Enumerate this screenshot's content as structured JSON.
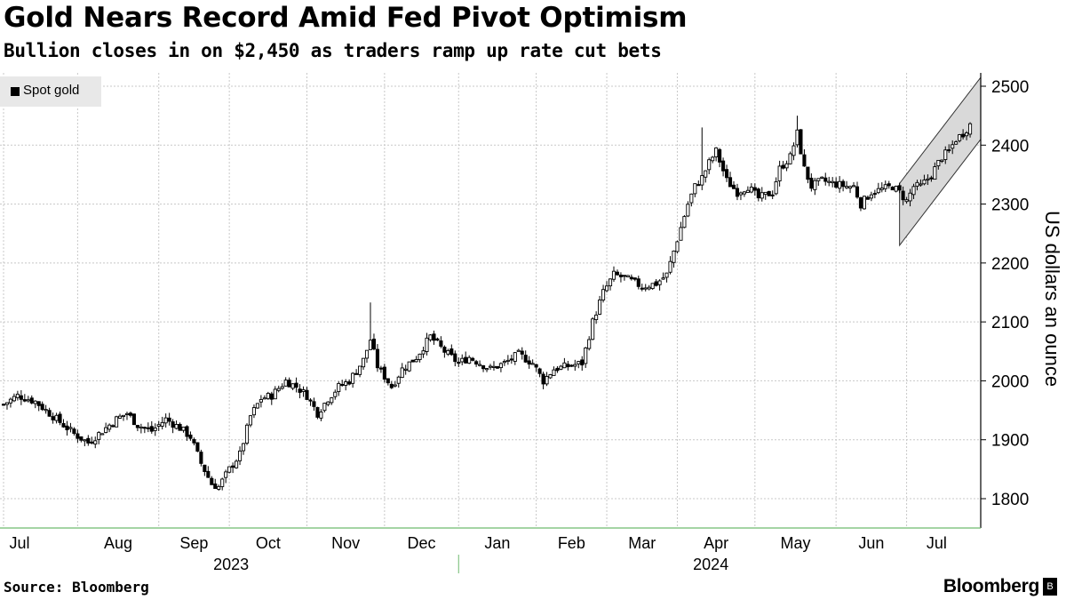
{
  "header": {
    "title": "Gold Nears Record Amid Fed Pivot Optimism",
    "subtitle": "Bullion closes in on $2,450 as traders ramp up rate cut bets"
  },
  "footer": {
    "source": "Source: Bloomberg",
    "brand": "Bloomberg"
  },
  "colors": {
    "candle": "#000000",
    "grid": "#c8c8c8",
    "axis": "#000000",
    "channel_fill": "#d9d9d9",
    "legend_bg": "#e8e8e8",
    "x_axis_line": "#6fba6f"
  },
  "chart_data": {
    "type": "candlestick",
    "title": "Gold Nears Record Amid Fed Pivot Optimism",
    "subtitle": "Bullion closes in on $2,450 as traders ramp up rate cut bets",
    "ylabel": "US dollars an ounce",
    "ylim": [
      1750,
      2525
    ],
    "yticks": [
      1800,
      1900,
      2000,
      2100,
      2200,
      2300,
      2400,
      2500
    ],
    "y_axis_side": "right",
    "grid": true,
    "legend": [
      {
        "label": "Spot gold",
        "position": "top-left"
      }
    ],
    "x_month_labels": [
      "Jul",
      "Aug",
      "Sep",
      "Oct",
      "Nov",
      "Dec",
      "Jan",
      "Feb",
      "Mar",
      "Apr",
      "May",
      "Jun",
      "Jul"
    ],
    "x_month_start_index": [
      0,
      21,
      44,
      64,
      86,
      108,
      129,
      151,
      171,
      191,
      213,
      236,
      256
    ],
    "x_year_labels": [
      {
        "label": "2023",
        "start": 0,
        "end": 129
      },
      {
        "label": "2024",
        "start": 129,
        "end": 272
      }
    ],
    "channel": {
      "description": "upward price channel",
      "start_index": 254,
      "end_index": 276,
      "upper": [
        2335,
        2515
      ],
      "lower": [
        2230,
        2410
      ]
    },
    "series": [
      {
        "name": "Spot gold",
        "close_anchors": [
          [
            0,
            1960
          ],
          [
            4,
            1975
          ],
          [
            9,
            1965
          ],
          [
            14,
            1940
          ],
          [
            20,
            1910
          ],
          [
            24,
            1895
          ],
          [
            28,
            1915
          ],
          [
            32,
            1935
          ],
          [
            35,
            1945
          ],
          [
            38,
            1925
          ],
          [
            42,
            1915
          ],
          [
            46,
            1935
          ],
          [
            50,
            1920
          ],
          [
            53,
            1905
          ],
          [
            56,
            1860
          ],
          [
            59,
            1825
          ],
          [
            61,
            1820
          ],
          [
            64,
            1850
          ],
          [
            67,
            1875
          ],
          [
            70,
            1940
          ],
          [
            73,
            1970
          ],
          [
            76,
            1975
          ],
          [
            80,
            2000
          ],
          [
            83,
            1990
          ],
          [
            86,
            1975
          ],
          [
            89,
            1945
          ],
          [
            92,
            1970
          ],
          [
            95,
            1990
          ],
          [
            98,
            2000
          ],
          [
            102,
            2035
          ],
          [
            104,
            2070
          ],
          [
            106,
            2025
          ],
          [
            110,
            1990
          ],
          [
            113,
            2020
          ],
          [
            117,
            2040
          ],
          [
            121,
            2075
          ],
          [
            125,
            2050
          ],
          [
            129,
            2030
          ],
          [
            132,
            2040
          ],
          [
            135,
            2030
          ],
          [
            138,
            2020
          ],
          [
            142,
            2030
          ],
          [
            146,
            2045
          ],
          [
            150,
            2030
          ],
          [
            153,
            2000
          ],
          [
            156,
            2020
          ],
          [
            160,
            2025
          ],
          [
            164,
            2030
          ],
          [
            167,
            2100
          ],
          [
            170,
            2150
          ],
          [
            173,
            2180
          ],
          [
            176,
            2175
          ],
          [
            181,
            2160
          ],
          [
            185,
            2165
          ],
          [
            188,
            2180
          ],
          [
            191,
            2240
          ],
          [
            194,
            2300
          ],
          [
            196,
            2330
          ],
          [
            198,
            2345
          ],
          [
            200,
            2370
          ],
          [
            202,
            2390
          ],
          [
            205,
            2340
          ],
          [
            208,
            2320
          ],
          [
            211,
            2330
          ],
          [
            214,
            2310
          ],
          [
            218,
            2320
          ],
          [
            220,
            2360
          ],
          [
            223,
            2380
          ],
          [
            225,
            2420
          ],
          [
            227,
            2360
          ],
          [
            229,
            2330
          ],
          [
            232,
            2340
          ],
          [
            235,
            2335
          ],
          [
            239,
            2330
          ],
          [
            241,
            2330
          ],
          [
            243,
            2300
          ],
          [
            246,
            2320
          ],
          [
            249,
            2325
          ],
          [
            252,
            2330
          ],
          [
            254,
            2320
          ],
          [
            256,
            2305
          ],
          [
            258,
            2330
          ],
          [
            260,
            2330
          ],
          [
            263,
            2350
          ],
          [
            266,
            2380
          ],
          [
            268,
            2390
          ],
          [
            270,
            2410
          ],
          [
            272,
            2420
          ],
          [
            274,
            2435
          ]
        ]
      }
    ]
  }
}
